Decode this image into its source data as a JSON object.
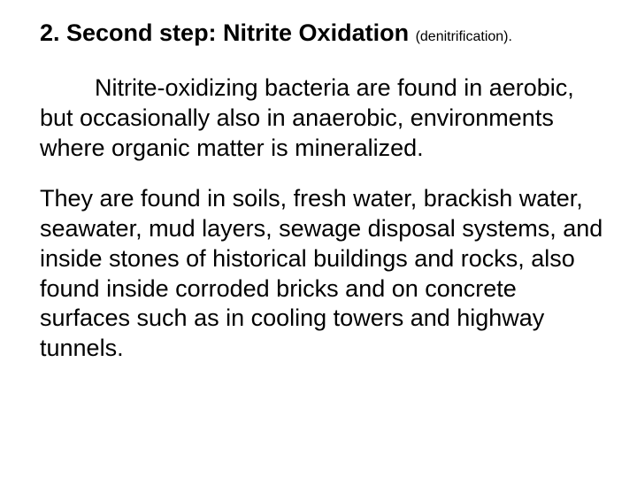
{
  "doc": {
    "heading_main": "2. Second step: Nitrite Oxidation ",
    "heading_sub": "(denitrification).",
    "paragraph1": "Nitrite-oxidizing bacteria are found in aerobic, but occasionally also in anaerobic, environments where organic matter is mineralized.",
    "paragraph2": "They are found in soils, fresh water, brackish water, seawater, mud layers, sewage disposal systems, and inside stones of historical buildings and rocks, also found inside corroded bricks and on concrete surfaces such as in cooling towers and highway tunnels."
  },
  "style": {
    "background_color": "#ffffff",
    "text_color": "#000000",
    "heading_main_fontsize": 27,
    "heading_sub_fontsize": 16,
    "body_fontsize": 27,
    "font_family": "Arial"
  }
}
